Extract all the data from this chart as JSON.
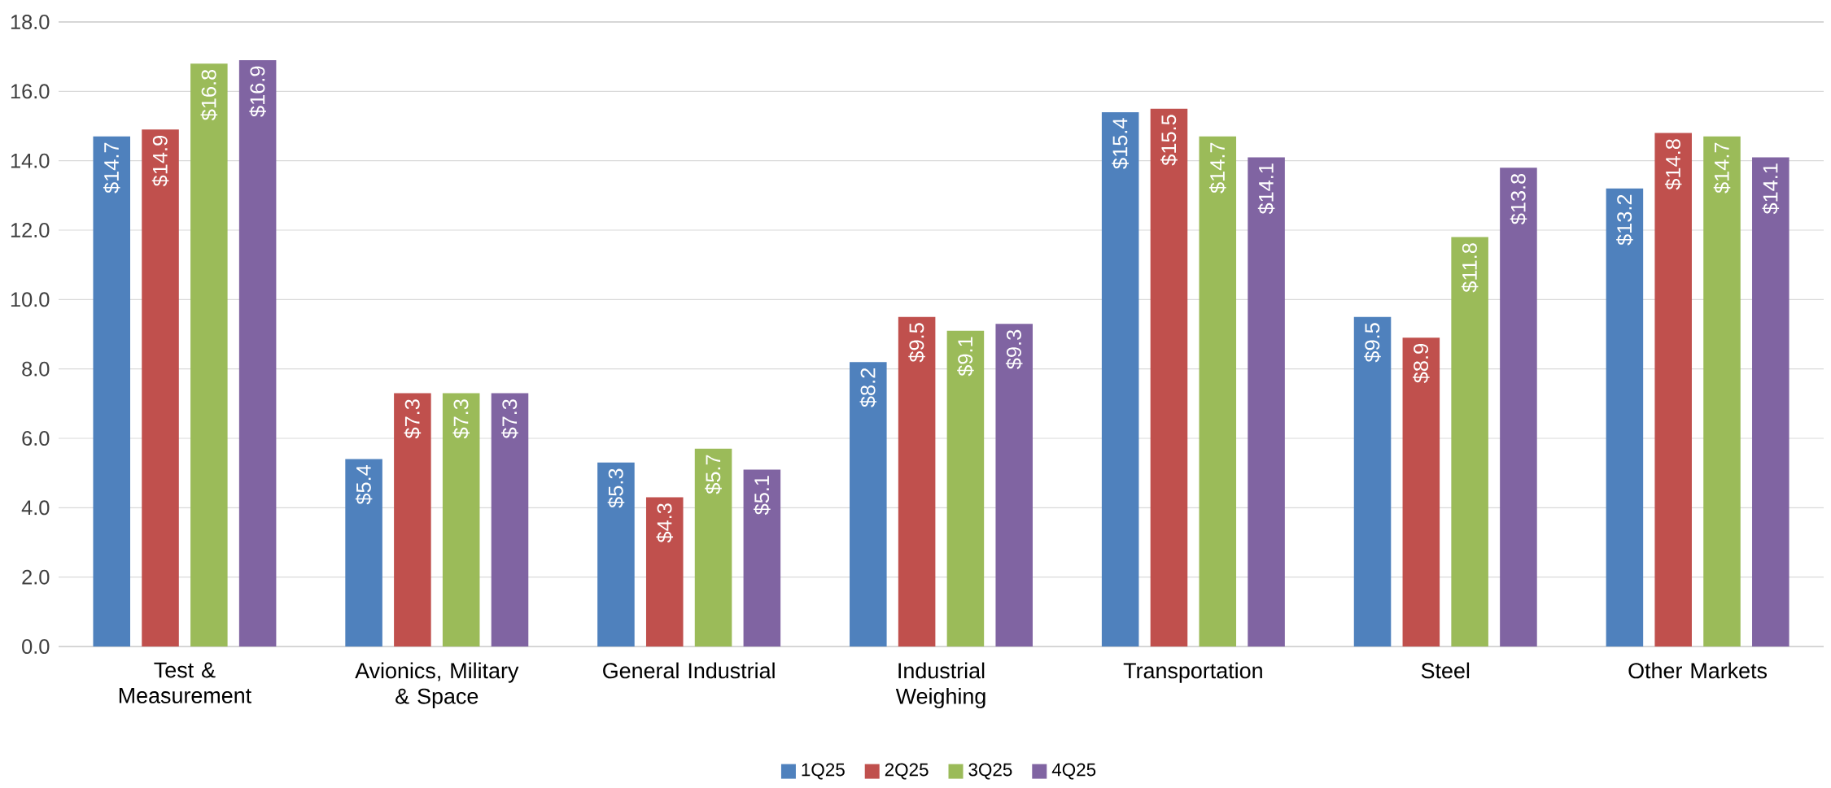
{
  "chart_data": {
    "type": "bar",
    "categories": [
      "Test & Measurement",
      "Avionics, Military & Space",
      "General Industrial",
      "Industrial Weighing",
      "Transportation",
      "Steel",
      "Other Markets"
    ],
    "series": [
      {
        "name": "1Q25",
        "color": "#4f81bd",
        "values": [
          14.7,
          5.4,
          5.3,
          8.2,
          15.4,
          9.5,
          13.2
        ],
        "value_labels": [
          "$14.7",
          "$5.4",
          "$5.3",
          "$8.2",
          "$15.4",
          "$9.5",
          "$13.2"
        ]
      },
      {
        "name": "2Q25",
        "color": "#c0504d",
        "values": [
          14.9,
          7.3,
          4.3,
          9.5,
          15.5,
          8.9,
          14.8
        ],
        "value_labels": [
          "$14.9",
          "$7.3",
          "$4.3",
          "$9.5",
          "$15.5",
          "$8.9",
          "$14.8"
        ]
      },
      {
        "name": "3Q25",
        "color": "#9bbb59",
        "values": [
          16.8,
          7.3,
          5.7,
          9.1,
          14.7,
          11.8,
          14.7
        ],
        "value_labels": [
          "$16.8",
          "$7.3",
          "$5.7",
          "$9.1",
          "$14.7",
          "$11.8",
          "$14.7"
        ]
      },
      {
        "name": "4Q25",
        "color": "#8064a2",
        "values": [
          16.9,
          7.3,
          5.1,
          9.3,
          14.1,
          13.8,
          14.1
        ],
        "value_labels": [
          "$16.9",
          "$7.3",
          "$5.1",
          "$9.3",
          "$14.1",
          "$13.8",
          "$14.1"
        ]
      }
    ],
    "ylim": [
      0,
      18
    ],
    "yticks": [
      {
        "value": 0,
        "label": "0.0"
      },
      {
        "value": 2,
        "label": "2.0"
      },
      {
        "value": 4,
        "label": "4.0"
      },
      {
        "value": 6,
        "label": "6.0"
      },
      {
        "value": 8,
        "label": "8.0"
      },
      {
        "value": 10,
        "label": "10.0"
      },
      {
        "value": 12,
        "label": "12.0"
      },
      {
        "value": 14,
        "label": "14.0"
      },
      {
        "value": 16,
        "label": "16.0"
      },
      {
        "value": 18,
        "label": "18.0"
      }
    ],
    "grid": "y",
    "legend": "bottom"
  }
}
